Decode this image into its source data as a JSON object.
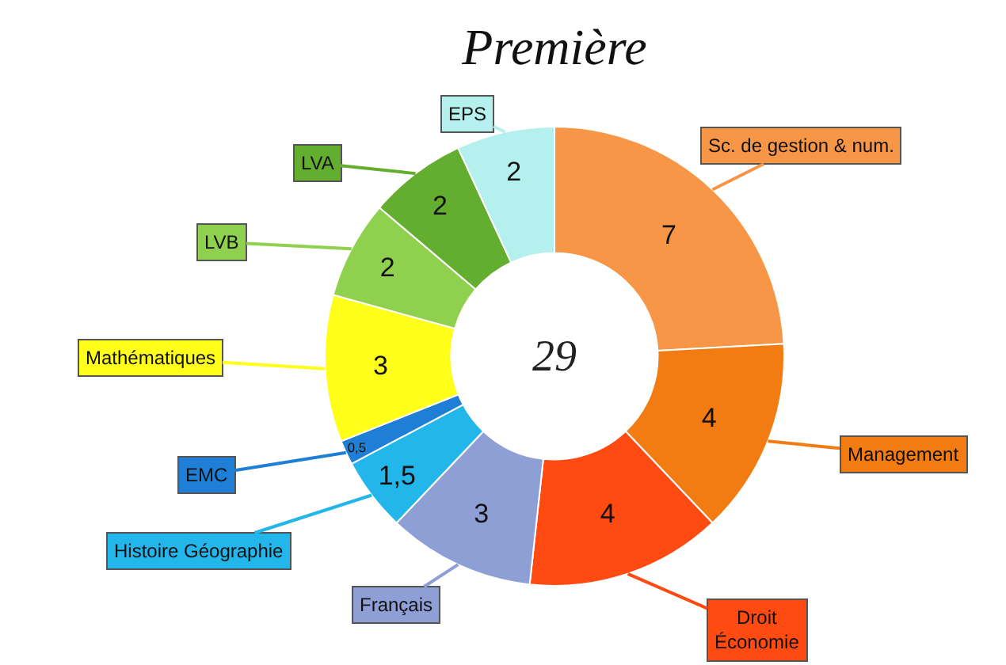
{
  "chart_data": {
    "type": "donut",
    "title": "Première",
    "categories": [
      "Sc. de gestion & num.",
      "Management",
      "Droit\nÉconomie",
      "Français",
      "Histoire Géographie",
      "EMC",
      "Mathématiques",
      "LVB",
      "LVA",
      "EPS"
    ],
    "values": [
      7,
      4,
      4,
      3,
      1.5,
      0.5,
      3,
      2,
      2,
      2
    ],
    "value_labels": [
      "7",
      "4",
      "4",
      "3",
      "1,5",
      "0,5",
      "3",
      "2",
      "2",
      "2"
    ],
    "colors": [
      "#f79646",
      "#f27c12",
      "#ff4a12",
      "#8e9fd6",
      "#23b6ea",
      "#1f7fd6",
      "#ffff1a",
      "#8fd14f",
      "#63ae2f",
      "#b3f0ee"
    ],
    "annotations": [
      "29"
    ],
    "legend": false
  }
}
